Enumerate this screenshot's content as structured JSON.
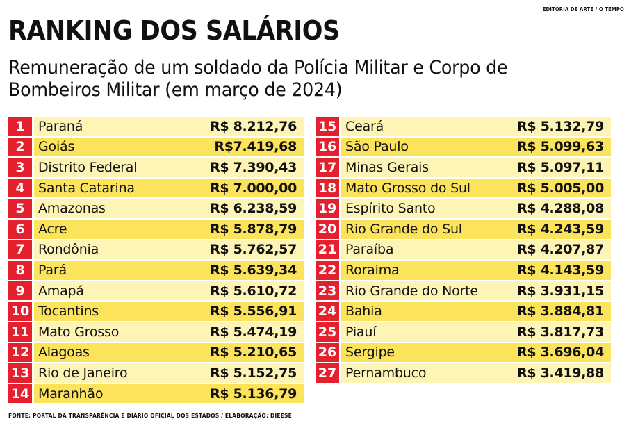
{
  "credit": "EDITORIA DE ARTE / O TEMPO",
  "source": "FONTE: PORTAL DA TRANSPARÊNCIA E DIÁRIO OFICIAL DOS ESTADOS / ELABORAÇÃO: DIEESE",
  "chart_data": {
    "type": "table",
    "title": "RANKING DOS SALÁRIOS",
    "subtitle": "Remuneração de um soldado da Polícia Militar e Corpo de Bombeiros Militar (em março de 2024)",
    "columns": [
      "rank",
      "state",
      "value"
    ],
    "rows": [
      {
        "rank": "1",
        "state": "Paraná",
        "value": "R$ 8.212,76"
      },
      {
        "rank": "2",
        "state": "Goiás",
        "value": "R$7.419,68"
      },
      {
        "rank": "3",
        "state": "Distrito Federal",
        "value": "R$ 7.390,43"
      },
      {
        "rank": "4",
        "state": "Santa Catarina",
        "value": "R$ 7.000,00"
      },
      {
        "rank": "5",
        "state": "Amazonas",
        "value": "R$ 6.238,59"
      },
      {
        "rank": "6",
        "state": "Acre",
        "value": "R$ 5.878,79"
      },
      {
        "rank": "7",
        "state": "Rondônia",
        "value": "R$ 5.762,57"
      },
      {
        "rank": "8",
        "state": "Pará",
        "value": "R$ 5.639,34"
      },
      {
        "rank": "9",
        "state": "Amapá",
        "value": "R$ 5.610,72"
      },
      {
        "rank": "10",
        "state": "Tocantins",
        "value": "R$ 5.556,91"
      },
      {
        "rank": "11",
        "state": "Mato Grosso",
        "value": "R$ 5.474,19"
      },
      {
        "rank": "12",
        "state": "Alagoas",
        "value": "R$ 5.210,65"
      },
      {
        "rank": "13",
        "state": "Rio de Janeiro",
        "value": "R$ 5.152,75"
      },
      {
        "rank": "14",
        "state": "Maranhão",
        "value": "R$ 5.136,79"
      },
      {
        "rank": "15",
        "state": "Ceará",
        "value": "R$ 5.132,79"
      },
      {
        "rank": "16",
        "state": "São Paulo",
        "value": "R$ 5.099,63"
      },
      {
        "rank": "17",
        "state": "Minas Gerais",
        "value": "R$ 5.097,11"
      },
      {
        "rank": "18",
        "state": "Mato Grosso do Sul",
        "value": "R$ 5.005,00"
      },
      {
        "rank": "19",
        "state": "Espírito Santo",
        "value": "R$ 4.288,08"
      },
      {
        "rank": "20",
        "state": "Rio Grande do Sul",
        "value": "R$ 4.243,59"
      },
      {
        "rank": "21",
        "state": "Paraíba",
        "value": "R$ 4.207,87"
      },
      {
        "rank": "22",
        "state": "Roraima",
        "value": "R$ 4.143,59"
      },
      {
        "rank": "23",
        "state": "Rio Grande do Norte",
        "value": "R$ 3.931,15"
      },
      {
        "rank": "24",
        "state": "Bahia",
        "value": "R$ 3.884,81"
      },
      {
        "rank": "25",
        "state": "Piauí",
        "value": "R$ 3.817,73"
      },
      {
        "rank": "26",
        "state": "Sergipe",
        "value": "R$ 3.696,04"
      },
      {
        "rank": "27",
        "state": "Pernambuco",
        "value": "R$ 3.419,88"
      }
    ]
  },
  "colors": {
    "rank_bg": "#e4202e",
    "row_dark": "#fbe35c",
    "row_light": "#fdf4b6"
  }
}
